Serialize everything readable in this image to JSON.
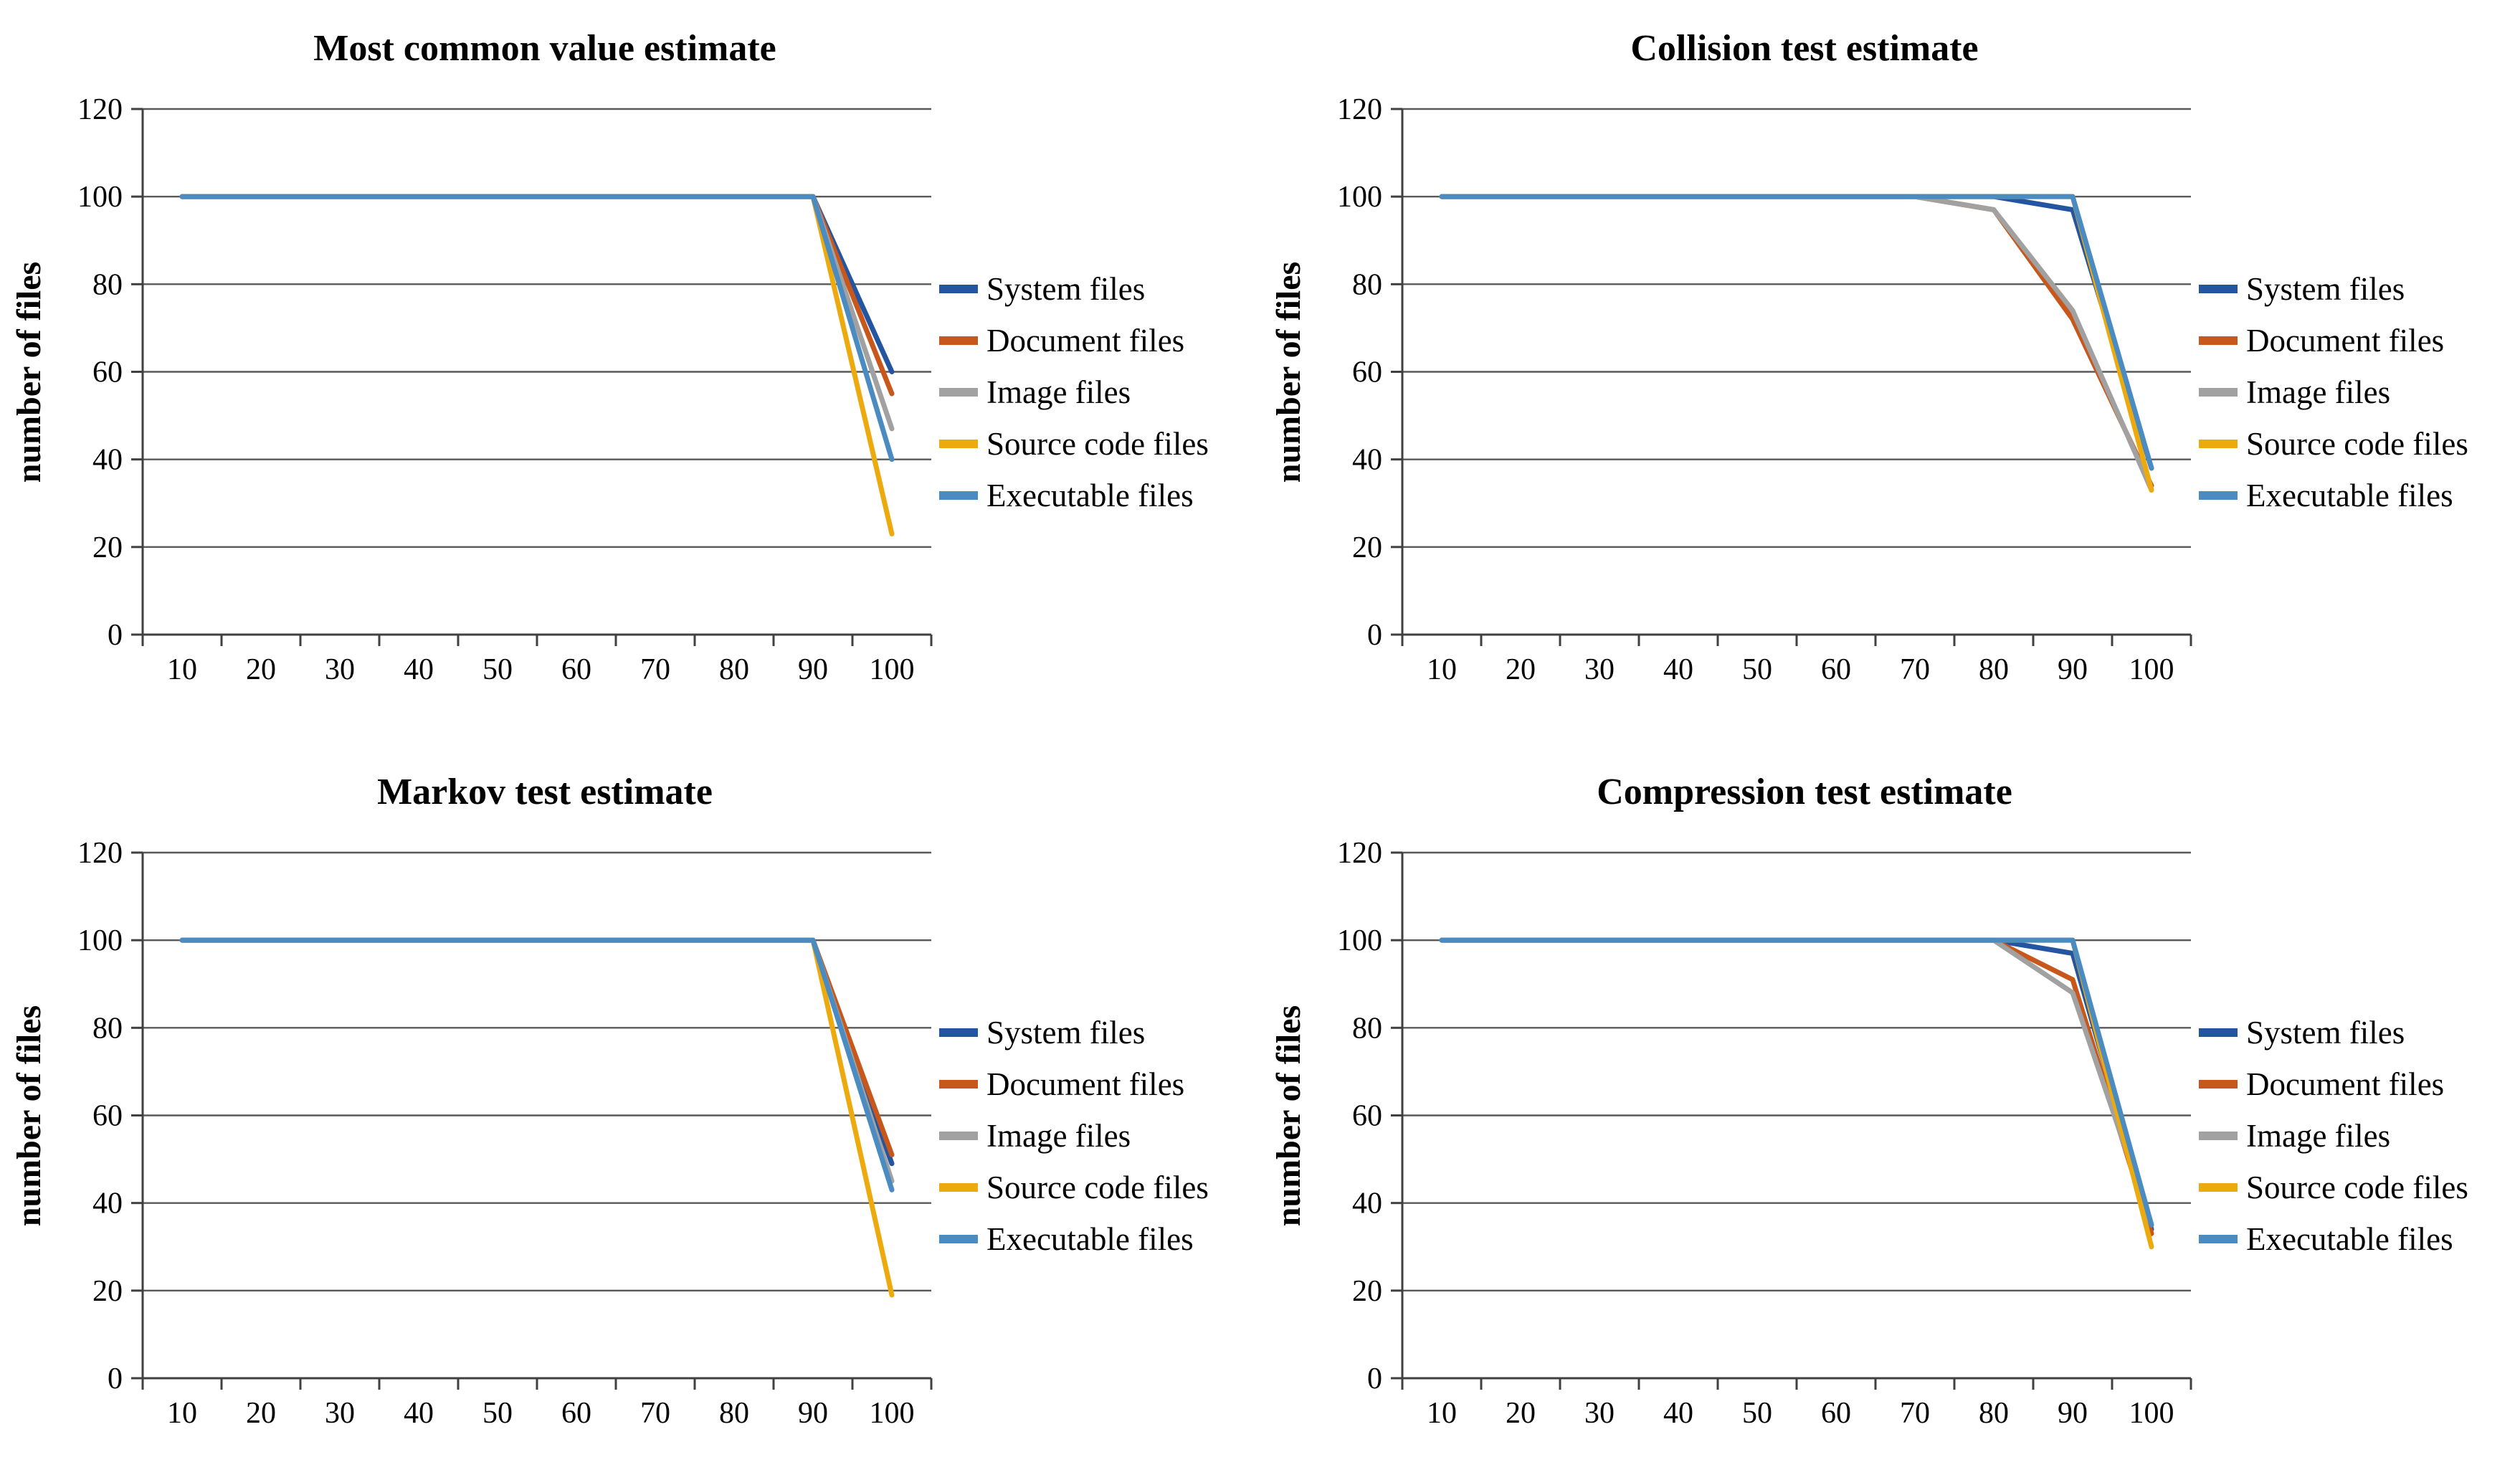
{
  "figure": {
    "background": "#FFFFFF",
    "axis_color": "#404040",
    "grid_color": "#595959",
    "text_color": "#000000"
  },
  "chart_data": [
    {
      "type": "line",
      "title": "Most common value estimate",
      "xlabel": "",
      "ylabel": "number of files",
      "x": [
        10,
        20,
        30,
        40,
        50,
        60,
        70,
        80,
        90,
        100
      ],
      "x_ticks": [
        "10",
        "20",
        "30",
        "40",
        "50",
        "60",
        "70",
        "80",
        "90",
        "100"
      ],
      "y_ticks": [
        "0",
        "20",
        "40",
        "60",
        "80",
        "100",
        "120"
      ],
      "ylim": [
        0,
        120
      ],
      "grid": true,
      "legend_position": "right",
      "series": [
        {
          "name": "System files",
          "color": "#2355A0",
          "values": [
            100,
            100,
            100,
            100,
            100,
            100,
            100,
            100,
            100,
            60
          ]
        },
        {
          "name": "Document files",
          "color": "#C8571B",
          "values": [
            100,
            100,
            100,
            100,
            100,
            100,
            100,
            100,
            100,
            55
          ]
        },
        {
          "name": "Image files",
          "color": "#A1A1A1",
          "values": [
            100,
            100,
            100,
            100,
            100,
            100,
            100,
            100,
            100,
            47
          ]
        },
        {
          "name": "Source code files",
          "color": "#EDAA0E",
          "values": [
            100,
            100,
            100,
            100,
            100,
            100,
            100,
            100,
            100,
            23
          ]
        },
        {
          "name": "Executable files",
          "color": "#4A8BC2",
          "values": [
            100,
            100,
            100,
            100,
            100,
            100,
            100,
            100,
            100,
            40
          ]
        }
      ]
    },
    {
      "type": "line",
      "title": "Collision test estimate",
      "xlabel": "",
      "ylabel": "number of files",
      "x": [
        10,
        20,
        30,
        40,
        50,
        60,
        70,
        80,
        90,
        100
      ],
      "x_ticks": [
        "10",
        "20",
        "30",
        "40",
        "50",
        "60",
        "70",
        "80",
        "90",
        "100"
      ],
      "y_ticks": [
        "0",
        "20",
        "40",
        "60",
        "80",
        "100",
        "120"
      ],
      "ylim": [
        0,
        120
      ],
      "grid": true,
      "legend_position": "right",
      "series": [
        {
          "name": "System files",
          "color": "#2355A0",
          "values": [
            100,
            100,
            100,
            100,
            100,
            100,
            100,
            100,
            97,
            38
          ]
        },
        {
          "name": "Document files",
          "color": "#C8571B",
          "values": [
            100,
            100,
            100,
            100,
            100,
            100,
            100,
            97,
            72,
            34
          ]
        },
        {
          "name": "Image files",
          "color": "#A1A1A1",
          "values": [
            100,
            100,
            100,
            100,
            100,
            100,
            100,
            97,
            74,
            33
          ]
        },
        {
          "name": "Source code files",
          "color": "#EDAA0E",
          "values": [
            100,
            100,
            100,
            100,
            100,
            100,
            100,
            100,
            100,
            33
          ]
        },
        {
          "name": "Executable files",
          "color": "#4A8BC2",
          "values": [
            100,
            100,
            100,
            100,
            100,
            100,
            100,
            100,
            100,
            38
          ]
        }
      ]
    },
    {
      "type": "line",
      "title": "Markov test estimate",
      "xlabel": "",
      "ylabel": "number of files",
      "x": [
        10,
        20,
        30,
        40,
        50,
        60,
        70,
        80,
        90,
        100
      ],
      "x_ticks": [
        "10",
        "20",
        "30",
        "40",
        "50",
        "60",
        "70",
        "80",
        "90",
        "100"
      ],
      "y_ticks": [
        "0",
        "20",
        "40",
        "60",
        "80",
        "100",
        "120"
      ],
      "ylim": [
        0,
        120
      ],
      "grid": true,
      "legend_position": "right",
      "series": [
        {
          "name": "System files",
          "color": "#2355A0",
          "values": [
            100,
            100,
            100,
            100,
            100,
            100,
            100,
            100,
            100,
            49
          ]
        },
        {
          "name": "Document files",
          "color": "#C8571B",
          "values": [
            100,
            100,
            100,
            100,
            100,
            100,
            100,
            100,
            100,
            51
          ]
        },
        {
          "name": "Image files",
          "color": "#A1A1A1",
          "values": [
            100,
            100,
            100,
            100,
            100,
            100,
            100,
            100,
            100,
            45
          ]
        },
        {
          "name": "Source code files",
          "color": "#EDAA0E",
          "values": [
            100,
            100,
            100,
            100,
            100,
            100,
            100,
            100,
            100,
            19
          ]
        },
        {
          "name": "Executable files",
          "color": "#4A8BC2",
          "values": [
            100,
            100,
            100,
            100,
            100,
            100,
            100,
            100,
            100,
            43
          ]
        }
      ]
    },
    {
      "type": "line",
      "title": "Compression test estimate",
      "xlabel": "",
      "ylabel": "number of files",
      "x": [
        10,
        20,
        30,
        40,
        50,
        60,
        70,
        80,
        90,
        100
      ],
      "x_ticks": [
        "10",
        "20",
        "30",
        "40",
        "50",
        "60",
        "70",
        "80",
        "90",
        "100"
      ],
      "y_ticks": [
        "0",
        "20",
        "40",
        "60",
        "80",
        "100",
        "120"
      ],
      "ylim": [
        0,
        120
      ],
      "grid": true,
      "legend_position": "right",
      "series": [
        {
          "name": "System files",
          "color": "#2355A0",
          "values": [
            100,
            100,
            100,
            100,
            100,
            100,
            100,
            100,
            97,
            34
          ]
        },
        {
          "name": "Document files",
          "color": "#C8571B",
          "values": [
            100,
            100,
            100,
            100,
            100,
            100,
            100,
            100,
            91,
            33
          ]
        },
        {
          "name": "Image files",
          "color": "#A1A1A1",
          "values": [
            100,
            100,
            100,
            100,
            100,
            100,
            100,
            100,
            88,
            35
          ]
        },
        {
          "name": "Source code files",
          "color": "#EDAA0E",
          "values": [
            100,
            100,
            100,
            100,
            100,
            100,
            100,
            100,
            100,
            30
          ]
        },
        {
          "name": "Executable files",
          "color": "#4A8BC2",
          "values": [
            100,
            100,
            100,
            100,
            100,
            100,
            100,
            100,
            100,
            35
          ]
        }
      ]
    }
  ]
}
